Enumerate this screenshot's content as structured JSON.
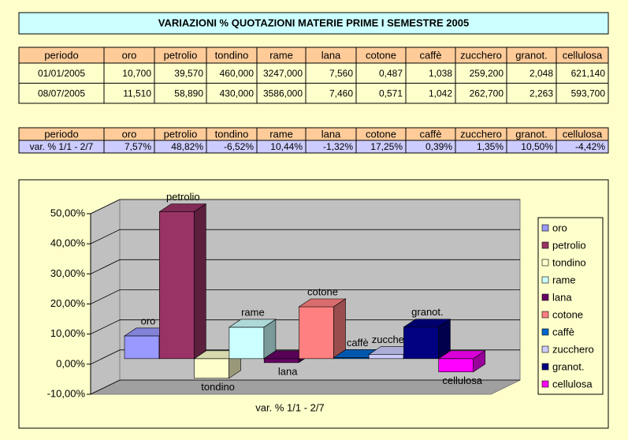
{
  "title": "VARIAZIONI % QUOTAZIONI MATERIE PRIME I SEMESTRE 2005",
  "table1": {
    "header": [
      "periodo",
      "oro",
      "petrolio",
      "tondino",
      "rame",
      "lana",
      "cotone",
      "caffè",
      "zucchero",
      "granot.",
      "cellulosa"
    ],
    "rows": [
      [
        "01/01/2005",
        "10,700",
        "39,570",
        "460,000",
        "3247,000",
        "7,560",
        "0,487",
        "1,038",
        "259,200",
        "2,048",
        "621,140"
      ],
      [
        "08/07/2005",
        "11,510",
        "58,890",
        "430,000",
        "3586,000",
        "7,460",
        "0,571",
        "1,042",
        "262,700",
        "2,263",
        "593,700"
      ]
    ]
  },
  "table2": {
    "header": [
      "periodo",
      "oro",
      "petrolio",
      "tondino",
      "rame",
      "lana",
      "cotone",
      "caffè",
      "zucchero",
      "granot.",
      "cellulosa"
    ],
    "rows": [
      [
        "var. % 1/1 - 2/7",
        "7,57%",
        "48,82%",
        "-6,52%",
        "10,44%",
        "-1,32%",
        "17,25%",
        "0,39%",
        "1,35%",
        "10,50%",
        "-4,42%"
      ]
    ]
  },
  "chart_data": {
    "type": "bar3d",
    "categories": [
      "var. % 1/1 - 2/7"
    ],
    "series": [
      {
        "name": "oro",
        "color": "#9999ff",
        "values": [
          7.57
        ]
      },
      {
        "name": "petrolio",
        "color": "#993366",
        "values": [
          48.82
        ]
      },
      {
        "name": "tondino",
        "color": "#ffffcc",
        "values": [
          -6.52
        ]
      },
      {
        "name": "rame",
        "color": "#ccffff",
        "values": [
          10.44
        ]
      },
      {
        "name": "lana",
        "color": "#660066",
        "values": [
          -1.32
        ]
      },
      {
        "name": "cotone",
        "color": "#ff8080",
        "values": [
          17.25
        ]
      },
      {
        "name": "caffè",
        "color": "#0066cc",
        "values": [
          0.39
        ]
      },
      {
        "name": "zucchero",
        "color": "#ccccff",
        "values": [
          1.35
        ]
      },
      {
        "name": "granot.",
        "color": "#000080",
        "values": [
          10.5
        ]
      },
      {
        "name": "cellulosa",
        "color": "#ff00ff",
        "values": [
          -4.42
        ]
      }
    ],
    "ylim": [
      -10,
      50
    ],
    "yticks": [
      {
        "value": -10,
        "label": "-10,00%"
      },
      {
        "value": 0,
        "label": "0,00%"
      },
      {
        "value": 10,
        "label": "10,00%"
      },
      {
        "value": 20,
        "label": "20,00%"
      },
      {
        "value": 30,
        "label": "30,00%"
      },
      {
        "value": 40,
        "label": "40,00%"
      },
      {
        "value": 50,
        "label": "50,00%"
      }
    ],
    "grid": true,
    "data_labels": true,
    "legend": "right"
  }
}
